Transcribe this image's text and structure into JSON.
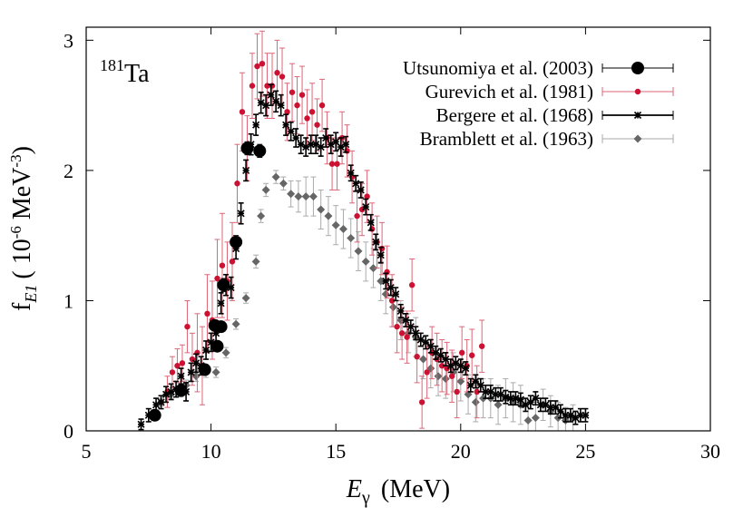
{
  "chart_data": {
    "type": "scatter",
    "title": "",
    "annotation": {
      "mass_number": "181",
      "element": "Ta"
    },
    "xlabel": {
      "symbol": "E",
      "subscript": "γ",
      "unit": "(MeV)"
    },
    "ylabel": {
      "symbol": "f",
      "subscript": "E1",
      "unit_open": "( 10",
      "unit_exp1": "-6",
      "unit_mid": " MeV",
      "unit_exp2": "-3",
      "unit_close": ")"
    },
    "xlim": [
      5,
      30
    ],
    "ylim": [
      0,
      3.1
    ],
    "xticks": [
      5,
      10,
      15,
      20,
      25,
      30
    ],
    "xtick_labels": [
      "5",
      "10",
      "15",
      "20",
      "25",
      "30"
    ],
    "yticks": [
      0,
      1,
      2,
      3
    ],
    "ytick_labels": [
      "0",
      "1",
      "2",
      "3"
    ],
    "grid": false,
    "legend_position": "top-right",
    "series": [
      {
        "name": "Utsunomiya et al. (2003)",
        "marker": "circle-large",
        "color": "#000000",
        "x": [
          7.75,
          8.8,
          9.75,
          10.15,
          10.25,
          10.4,
          10.5,
          11.0,
          11.45,
          11.95
        ],
        "y": [
          0.12,
          0.31,
          0.47,
          0.81,
          0.65,
          0.8,
          1.12,
          1.45,
          2.17,
          2.15
        ],
        "err": [
          0.02,
          0.02,
          0.03,
          0.04,
          0.04,
          0.04,
          0.05,
          0.05,
          0.05,
          0.05
        ]
      },
      {
        "name": "Gurevich et al. (1981)",
        "marker": "circle-small",
        "color": "#cc1133",
        "x": [
          8.25,
          8.45,
          8.65,
          8.85,
          9.05,
          9.25,
          9.45,
          9.65,
          9.85,
          10.05,
          10.25,
          10.45,
          10.65,
          10.85,
          11.05,
          11.25,
          11.45,
          11.65,
          11.85,
          12.05,
          12.25,
          12.45,
          12.65,
          12.85,
          13.05,
          13.25,
          13.45,
          13.65,
          13.85,
          14.05,
          14.25,
          14.45,
          14.65,
          14.85,
          15.05,
          15.25,
          15.45,
          15.65,
          15.85,
          16.05,
          16.25,
          16.45,
          16.65,
          16.85,
          17.05,
          17.25,
          17.45,
          17.65,
          17.85,
          18.05,
          18.25,
          18.45,
          18.65,
          18.85,
          19.05,
          19.25,
          19.45,
          19.65,
          19.85,
          20.05,
          20.25,
          20.45,
          20.65,
          20.85
        ],
        "y": [
          0.3,
          0.45,
          0.5,
          0.52,
          0.8,
          0.55,
          0.6,
          0.5,
          0.9,
          0.85,
          1.17,
          1.27,
          1.15,
          1.3,
          1.9,
          2.45,
          2.17,
          2.65,
          2.8,
          2.82,
          2.65,
          2.65,
          2.75,
          2.72,
          2.45,
          2.6,
          2.5,
          2.58,
          2.4,
          2.45,
          2.35,
          2.5,
          2.25,
          2.05,
          2.05,
          2.25,
          2.15,
          1.95,
          1.65,
          1.7,
          1.8,
          1.55,
          1.45,
          1.4,
          1.22,
          1.0,
          0.8,
          0.75,
          0.72,
          1.12,
          0.57,
          0.22,
          0.45,
          0.6,
          0.55,
          0.5,
          0.48,
          0.42,
          0.3,
          0.6,
          0.5,
          0.58,
          0.3,
          0.65
        ],
        "err": [
          0.12,
          0.12,
          0.13,
          0.14,
          0.2,
          0.2,
          0.3,
          0.3,
          0.3,
          0.3,
          0.3,
          0.4,
          0.3,
          0.3,
          0.3,
          0.3,
          0.25,
          0.25,
          0.25,
          0.25,
          0.25,
          0.25,
          0.25,
          0.22,
          0.22,
          0.22,
          0.22,
          0.22,
          0.22,
          0.22,
          0.2,
          0.2,
          0.2,
          0.2,
          0.2,
          0.2,
          0.2,
          0.2,
          0.2,
          0.2,
          0.2,
          0.2,
          0.2,
          0.2,
          0.2,
          0.2,
          0.2,
          0.2,
          0.2,
          0.2,
          0.2,
          0.2,
          0.2,
          0.2,
          0.2,
          0.2,
          0.2,
          0.2,
          0.2,
          0.2,
          0.2,
          0.2,
          0.2,
          0.2
        ]
      },
      {
        "name": "Bergere et al. (1968)",
        "marker": "asterisk",
        "color": "#000000",
        "x": [
          7.2,
          7.5,
          7.8,
          8.0,
          8.2,
          8.4,
          8.6,
          8.8,
          9.0,
          9.2,
          9.4,
          9.6,
          9.8,
          10.0,
          10.2,
          10.4,
          10.6,
          10.8,
          11.0,
          11.2,
          11.4,
          11.6,
          11.8,
          12.0,
          12.2,
          12.4,
          12.6,
          12.8,
          13.0,
          13.2,
          13.4,
          13.6,
          13.8,
          14.0,
          14.2,
          14.4,
          14.6,
          14.8,
          15.0,
          15.2,
          15.4,
          15.6,
          15.8,
          16.0,
          16.2,
          16.4,
          16.6,
          16.8,
          17.0,
          17.2,
          17.4,
          17.6,
          17.8,
          18.0,
          18.2,
          18.4,
          18.6,
          18.8,
          19.0,
          19.2,
          19.4,
          19.6,
          19.8,
          20.0,
          20.2,
          20.4,
          20.6,
          20.8,
          21.0,
          21.2,
          21.4,
          21.6,
          21.8,
          22.0,
          22.2,
          22.4,
          22.6,
          22.8,
          23.0,
          23.2,
          23.4,
          23.6,
          23.8,
          24.0,
          24.2,
          24.4,
          24.6,
          24.8,
          25.0
        ],
        "y": [
          0.05,
          0.12,
          0.2,
          0.22,
          0.28,
          0.3,
          0.32,
          0.42,
          0.3,
          0.45,
          0.52,
          0.5,
          0.62,
          0.68,
          0.75,
          0.98,
          1.12,
          1.1,
          1.4,
          1.67,
          2.0,
          2.2,
          2.35,
          2.52,
          2.5,
          2.58,
          2.53,
          2.5,
          2.35,
          2.3,
          2.25,
          2.2,
          2.18,
          2.2,
          2.2,
          2.18,
          2.25,
          2.2,
          2.22,
          2.18,
          2.2,
          1.98,
          1.9,
          1.85,
          1.72,
          1.6,
          1.45,
          1.35,
          1.15,
          1.1,
          1.05,
          0.92,
          0.85,
          0.8,
          0.75,
          0.7,
          0.68,
          0.65,
          0.6,
          0.58,
          0.55,
          0.5,
          0.52,
          0.5,
          0.48,
          0.35,
          0.38,
          0.35,
          0.3,
          0.3,
          0.28,
          0.28,
          0.26,
          0.25,
          0.25,
          0.24,
          0.2,
          0.22,
          0.25,
          0.2,
          0.2,
          0.18,
          0.18,
          0.15,
          0.12,
          0.12,
          0.1,
          0.12,
          0.12
        ],
        "err": [
          0.04,
          0.05,
          0.05,
          0.05,
          0.06,
          0.06,
          0.06,
          0.06,
          0.07,
          0.07,
          0.07,
          0.07,
          0.07,
          0.07,
          0.08,
          0.08,
          0.08,
          0.08,
          0.08,
          0.08,
          0.08,
          0.08,
          0.08,
          0.08,
          0.08,
          0.08,
          0.08,
          0.08,
          0.08,
          0.07,
          0.07,
          0.07,
          0.07,
          0.07,
          0.07,
          0.07,
          0.07,
          0.07,
          0.07,
          0.07,
          0.06,
          0.06,
          0.06,
          0.06,
          0.06,
          0.06,
          0.06,
          0.06,
          0.06,
          0.06,
          0.05,
          0.05,
          0.05,
          0.05,
          0.05,
          0.05,
          0.05,
          0.05,
          0.05,
          0.05,
          0.05,
          0.05,
          0.05,
          0.05,
          0.05,
          0.05,
          0.05,
          0.05,
          0.05,
          0.05,
          0.05,
          0.05,
          0.05,
          0.05,
          0.05,
          0.05,
          0.05,
          0.05,
          0.05,
          0.05,
          0.05,
          0.05,
          0.05,
          0.05,
          0.05,
          0.05,
          0.05,
          0.05,
          0.05
        ]
      },
      {
        "name": "Bramblett et al. (1963)",
        "marker": "diamond",
        "color": "#666666",
        "x": [
          8.0,
          8.4,
          8.8,
          9.0,
          9.4,
          9.8,
          10.2,
          10.6,
          11.0,
          11.4,
          11.8,
          12.0,
          12.2,
          12.6,
          12.9,
          13.2,
          13.5,
          13.8,
          14.1,
          14.4,
          14.7,
          15.0,
          15.3,
          15.6,
          15.9,
          16.2,
          16.5,
          16.8,
          17.0,
          17.3,
          17.6,
          17.9,
          18.2,
          18.5,
          18.8,
          19.1,
          19.4,
          19.7,
          20.0,
          20.3,
          20.6,
          20.9,
          21.2,
          21.5,
          21.8,
          22.1,
          22.4,
          22.7,
          23.0,
          23.3,
          23.6,
          23.9,
          24.2,
          24.5
        ],
        "y": [
          0.22,
          0.28,
          0.3,
          0.35,
          0.42,
          0.45,
          0.45,
          0.6,
          0.82,
          1.02,
          1.3,
          1.65,
          1.85,
          1.95,
          1.9,
          1.82,
          1.8,
          1.8,
          1.8,
          1.7,
          1.65,
          1.58,
          1.55,
          1.48,
          1.38,
          1.3,
          1.25,
          1.15,
          1.05,
          0.95,
          0.85,
          0.75,
          0.72,
          0.55,
          0.48,
          0.42,
          0.4,
          0.45,
          0.38,
          0.28,
          0.22,
          0.25,
          0.25,
          0.2,
          0.25,
          0.22,
          0.2,
          0.08,
          0.1,
          0.2,
          0.15,
          0.1,
          0.08,
          0.1
        ],
        "err": [
          0.03,
          0.03,
          0.04,
          0.04,
          0.04,
          0.04,
          0.04,
          0.04,
          0.04,
          0.04,
          0.05,
          0.05,
          0.05,
          0.05,
          0.05,
          0.1,
          0.12,
          0.15,
          0.15,
          0.15,
          0.15,
          0.15,
          0.15,
          0.15,
          0.15,
          0.15,
          0.15,
          0.15,
          0.15,
          0.15,
          0.15,
          0.15,
          0.15,
          0.15,
          0.15,
          0.15,
          0.15,
          0.15,
          0.15,
          0.15,
          0.15,
          0.15,
          0.15,
          0.15,
          0.15,
          0.15,
          0.15,
          0.15,
          0.12,
          0.12,
          0.12,
          0.12,
          0.1,
          0.1
        ]
      }
    ]
  }
}
